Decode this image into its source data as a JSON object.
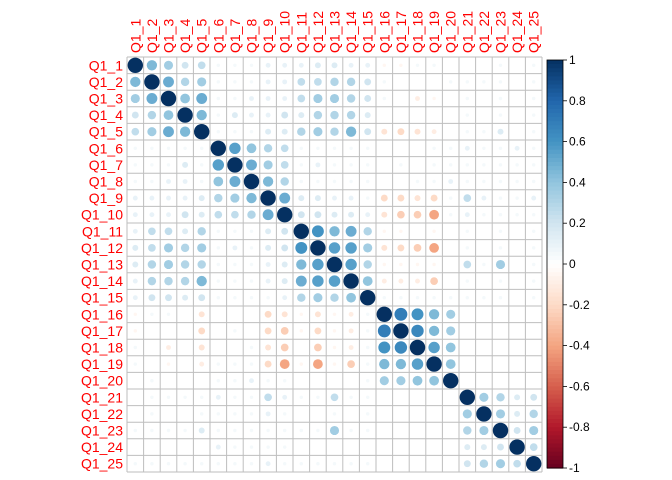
{
  "chart_data": {
    "type": "heatmap",
    "style": "corrplot-circle",
    "variables": [
      "Q1_1",
      "Q1_2",
      "Q1_3",
      "Q1_4",
      "Q1_5",
      "Q1_6",
      "Q1_7",
      "Q1_8",
      "Q1_9",
      "Q1_10",
      "Q1_11",
      "Q1_12",
      "Q1_13",
      "Q1_14",
      "Q1_15",
      "Q1_16",
      "Q1_17",
      "Q1_18",
      "Q1_19",
      "Q1_20",
      "Q1_21",
      "Q1_22",
      "Q1_23",
      "Q1_24",
      "Q1_25"
    ],
    "matrix": [
      [
        1,
        0.45,
        0.35,
        0.2,
        0.25,
        0.05,
        0.05,
        0.05,
        0.1,
        0.1,
        0.1,
        0.15,
        0.15,
        0.1,
        0.1,
        -0.05,
        -0.05,
        0.05,
        0.05,
        0,
        0,
        0,
        0.05,
        0,
        0.05
      ],
      [
        0.45,
        1,
        0.5,
        0.3,
        0.35,
        0.05,
        0.05,
        0.05,
        0.1,
        0.1,
        0.25,
        0.25,
        0.3,
        0.3,
        0.2,
        0.05,
        0,
        0,
        0,
        0.05,
        0.05,
        0.05,
        0.05,
        0,
        0.05
      ],
      [
        0.35,
        0.5,
        1,
        0.4,
        0.5,
        0.05,
        0.05,
        0.1,
        0.1,
        0.1,
        0.25,
        0.35,
        0.35,
        0.3,
        0.2,
        0.05,
        0,
        -0.1,
        -0.05,
        0,
        0.05,
        0,
        0.05,
        0,
        0.05
      ],
      [
        0.2,
        0.3,
        0.4,
        1,
        0.45,
        0.05,
        0.15,
        0.1,
        0.1,
        0.2,
        0.15,
        0.3,
        0.3,
        0.3,
        0.15,
        0,
        0,
        0,
        0,
        0,
        0.05,
        0,
        0.05,
        0,
        0.05
      ],
      [
        0.25,
        0.35,
        0.5,
        0.45,
        1,
        0.05,
        0.05,
        0.05,
        0.15,
        0.15,
        0.3,
        0.35,
        0.3,
        0.45,
        0.2,
        -0.15,
        -0.2,
        -0.15,
        -0.1,
        0,
        0.05,
        0.05,
        0.15,
        0,
        0.05
      ],
      [
        0.05,
        0.05,
        0.05,
        0.05,
        0.05,
        1,
        0.55,
        0.4,
        0.3,
        0.25,
        0.05,
        0.05,
        0.05,
        0.05,
        0.05,
        0,
        0,
        0,
        0.05,
        0.05,
        0.1,
        0.05,
        0.05,
        0.1,
        0.05
      ],
      [
        0.05,
        0.05,
        0.05,
        0.15,
        0.05,
        0.55,
        1,
        0.5,
        0.35,
        0.25,
        0.05,
        0.1,
        0.05,
        0.05,
        0.05,
        0,
        0.05,
        0,
        0.05,
        0.05,
        0.05,
        0.05,
        0.05,
        0.05,
        0.05
      ],
      [
        0.05,
        0.05,
        0.1,
        0.1,
        0.05,
        0.4,
        0.5,
        1,
        0.45,
        0.3,
        0.05,
        0.05,
        0.05,
        0.05,
        0.05,
        0,
        0,
        0.05,
        0.05,
        0.1,
        0.05,
        0.05,
        0.05,
        0.05,
        0.05
      ],
      [
        0.1,
        0.1,
        0.1,
        0.1,
        0.15,
        0.3,
        0.35,
        0.45,
        1,
        0.5,
        0.15,
        0.15,
        0.1,
        0.1,
        0.05,
        -0.2,
        -0.2,
        -0.15,
        -0.2,
        0.05,
        0.25,
        0.1,
        0.05,
        0.05,
        0.1
      ],
      [
        0.1,
        0.1,
        0.1,
        0.2,
        0.15,
        0.25,
        0.25,
        0.3,
        0.5,
        1,
        0.2,
        0.2,
        0.15,
        0.15,
        0.1,
        -0.15,
        -0.25,
        -0.25,
        -0.4,
        0.05,
        0.1,
        0.05,
        0.05,
        0.05,
        0.05
      ],
      [
        0.1,
        0.25,
        0.25,
        0.15,
        0.3,
        0.05,
        0.05,
        0.05,
        0.15,
        0.2,
        1,
        0.6,
        0.45,
        0.5,
        0.3,
        -0.05,
        -0.05,
        0,
        -0.05,
        0,
        0.05,
        0,
        0.05,
        0,
        0.05
      ],
      [
        0.15,
        0.25,
        0.35,
        0.3,
        0.35,
        0.05,
        0.1,
        0.05,
        0.15,
        0.2,
        0.6,
        1,
        0.55,
        0.55,
        0.35,
        -0.15,
        -0.2,
        -0.25,
        -0.4,
        0,
        0.05,
        0,
        0.05,
        0,
        0.05
      ],
      [
        0.15,
        0.3,
        0.35,
        0.3,
        0.3,
        0.05,
        0.05,
        0.05,
        0.1,
        0.15,
        0.45,
        0.55,
        1,
        0.55,
        0.3,
        -0.05,
        -0.05,
        -0.05,
        -0.05,
        0,
        0.25,
        0.05,
        0.35,
        0,
        0.05
      ],
      [
        0.1,
        0.3,
        0.3,
        0.3,
        0.45,
        0.05,
        0.05,
        0.05,
        0.1,
        0.15,
        0.5,
        0.55,
        0.55,
        1,
        0.4,
        -0.1,
        -0.1,
        -0.1,
        -0.25,
        0,
        0.05,
        0,
        0.05,
        0,
        0.05
      ],
      [
        0.1,
        0.2,
        0.2,
        0.15,
        0.2,
        0.05,
        0.05,
        0.05,
        0.05,
        0.1,
        0.3,
        0.35,
        0.3,
        0.4,
        1,
        0.05,
        0.05,
        0.05,
        0.05,
        0.05,
        0.05,
        0.05,
        0.05,
        0,
        0.05
      ],
      [
        -0.05,
        0.05,
        0.05,
        0,
        -0.15,
        0,
        0,
        0,
        -0.2,
        -0.15,
        -0.05,
        -0.15,
        -0.05,
        -0.1,
        0.05,
        1,
        0.7,
        0.6,
        0.45,
        0.35,
        0,
        0,
        0,
        0,
        0
      ],
      [
        -0.05,
        0,
        0,
        0,
        -0.2,
        0,
        0.05,
        0,
        -0.2,
        -0.25,
        -0.05,
        -0.2,
        -0.05,
        -0.1,
        0.05,
        0.7,
        1,
        0.65,
        0.45,
        0.35,
        0,
        0,
        0,
        0,
        0
      ],
      [
        0.05,
        0,
        -0.1,
        0,
        -0.15,
        0,
        0,
        0.05,
        -0.15,
        -0.25,
        0,
        -0.25,
        -0.05,
        -0.1,
        0.05,
        0.6,
        0.65,
        1,
        0.55,
        0.4,
        0,
        0,
        0,
        0,
        0
      ],
      [
        0.05,
        0,
        -0.05,
        0,
        -0.1,
        0.05,
        0.05,
        0.05,
        -0.2,
        -0.4,
        -0.05,
        -0.4,
        -0.05,
        -0.25,
        0.05,
        0.45,
        0.45,
        0.55,
        1,
        0.4,
        0,
        0,
        0,
        0,
        0
      ],
      [
        0,
        0.05,
        0,
        0,
        0,
        0.05,
        0.05,
        0.1,
        0.05,
        0.05,
        0,
        0,
        0,
        0,
        0.05,
        0.35,
        0.35,
        0.4,
        0.4,
        1,
        0,
        0,
        0,
        0,
        0
      ],
      [
        0,
        0.05,
        0.05,
        0.05,
        0.05,
        0.1,
        0.05,
        0.05,
        0.25,
        0.1,
        0.05,
        0.05,
        0.25,
        0.05,
        0.05,
        0,
        0,
        0,
        0,
        0,
        1,
        0.35,
        0.3,
        0.15,
        0.2
      ],
      [
        0,
        0.05,
        0,
        0,
        0.05,
        0.05,
        0.05,
        0.05,
        0.1,
        0.05,
        0,
        0,
        0.05,
        0,
        0.05,
        0,
        0,
        0,
        0,
        0,
        0.35,
        1,
        0.35,
        0.15,
        0.3
      ],
      [
        0.05,
        0.05,
        0.05,
        0.05,
        0.15,
        0.05,
        0.05,
        0.05,
        0.05,
        0.05,
        0.05,
        0.05,
        0.35,
        0.05,
        0.05,
        0,
        0,
        0,
        0,
        0,
        0.3,
        0.35,
        1,
        0.2,
        0.35
      ],
      [
        0,
        0,
        0,
        0,
        0,
        0.1,
        0.05,
        0.05,
        0.05,
        0.05,
        0,
        0,
        0,
        0,
        0,
        0,
        0,
        0,
        0,
        0,
        0.15,
        0.15,
        0.2,
        1,
        0.25
      ],
      [
        0.05,
        0.05,
        0.05,
        0.05,
        0.05,
        0.05,
        0.05,
        0.05,
        0.1,
        0.05,
        0.05,
        0.05,
        0.05,
        0.05,
        0.05,
        0,
        0,
        0,
        0,
        0,
        0.2,
        0.3,
        0.35,
        0.25,
        1
      ]
    ],
    "colorbar": {
      "range": [
        -1,
        1
      ],
      "ticks": [
        "-1",
        "-0.8",
        "-0.6",
        "-0.4",
        "-0.2",
        "0",
        "0.2",
        "0.4",
        "0.6",
        "0.8",
        "1"
      ],
      "tick_values": [
        -1,
        -0.8,
        -0.6,
        -0.4,
        -0.2,
        0,
        0.2,
        0.4,
        0.6,
        0.8,
        1
      ],
      "colors": [
        "#67001F",
        "#B2182B",
        "#D6604D",
        "#F4A582",
        "#FDDBC7",
        "#FFFFFF",
        "#D1E5F0",
        "#92C5DE",
        "#4393C3",
        "#2166AC",
        "#053061"
      ]
    },
    "label_color": "#FF0000",
    "grid_color": "#BEBEBE"
  }
}
